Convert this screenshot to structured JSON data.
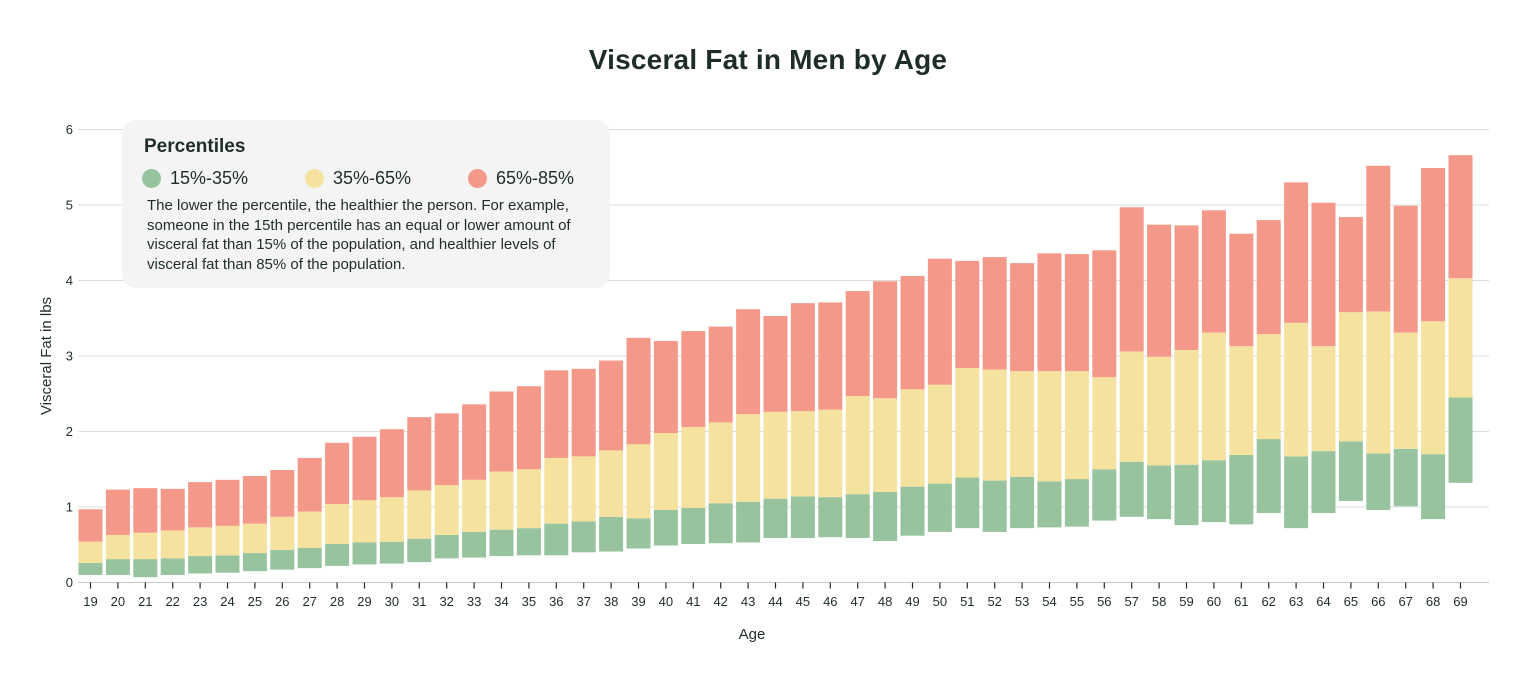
{
  "chart_data": {
    "type": "bar",
    "stacked": "floating",
    "title": "Visceral Fat in Men by Age",
    "xlabel": "Age",
    "ylabel": "Visceral Fat in lbs",
    "ylim": [
      0,
      6
    ],
    "yticks": [
      0,
      1,
      2,
      3,
      4,
      5,
      6
    ],
    "grid": true,
    "categories": [
      "19",
      "20",
      "21",
      "22",
      "23",
      "24",
      "25",
      "26",
      "27",
      "28",
      "29",
      "30",
      "31",
      "32",
      "33",
      "34",
      "35",
      "36",
      "37",
      "38",
      "39",
      "40",
      "41",
      "42",
      "43",
      "44",
      "45",
      "46",
      "47",
      "48",
      "49",
      "50",
      "51",
      "52",
      "53",
      "54",
      "55",
      "56",
      "57",
      "58",
      "59",
      "60",
      "61",
      "62",
      "63",
      "64",
      "65",
      "66",
      "67",
      "68",
      "69"
    ],
    "p15": [
      0.1,
      0.1,
      0.07,
      0.1,
      0.12,
      0.13,
      0.15,
      0.17,
      0.19,
      0.22,
      0.24,
      0.25,
      0.27,
      0.32,
      0.33,
      0.35,
      0.36,
      0.36,
      0.4,
      0.41,
      0.45,
      0.49,
      0.51,
      0.52,
      0.53,
      0.59,
      0.59,
      0.6,
      0.59,
      0.55,
      0.62,
      0.67,
      0.72,
      0.67,
      0.72,
      0.73,
      0.74,
      0.82,
      0.87,
      0.84,
      0.76,
      0.8,
      0.77,
      0.92,
      0.72,
      0.92,
      1.08,
      0.96,
      1.01,
      0.84,
      1.32
    ],
    "p35": [
      0.26,
      0.31,
      0.31,
      0.32,
      0.35,
      0.36,
      0.39,
      0.43,
      0.46,
      0.51,
      0.53,
      0.54,
      0.58,
      0.63,
      0.67,
      0.7,
      0.72,
      0.78,
      0.81,
      0.87,
      0.85,
      0.96,
      0.99,
      1.05,
      1.07,
      1.11,
      1.14,
      1.13,
      1.17,
      1.2,
      1.27,
      1.31,
      1.39,
      1.35,
      1.4,
      1.34,
      1.37,
      1.5,
      1.6,
      1.55,
      1.56,
      1.62,
      1.69,
      1.9,
      1.67,
      1.74,
      1.87,
      1.71,
      1.77,
      1.7,
      2.45
    ],
    "p65": [
      0.54,
      0.63,
      0.66,
      0.69,
      0.73,
      0.75,
      0.78,
      0.87,
      0.94,
      1.04,
      1.09,
      1.13,
      1.22,
      1.29,
      1.36,
      1.47,
      1.5,
      1.65,
      1.67,
      1.75,
      1.83,
      1.98,
      2.06,
      2.12,
      2.23,
      2.26,
      2.27,
      2.29,
      2.47,
      2.44,
      2.56,
      2.62,
      2.84,
      2.82,
      2.8,
      2.8,
      2.8,
      2.72,
      3.06,
      2.99,
      3.08,
      3.31,
      3.13,
      3.29,
      3.44,
      3.13,
      3.58,
      3.59,
      3.31,
      3.46,
      4.03
    ],
    "p85": [
      0.97,
      1.23,
      1.25,
      1.24,
      1.33,
      1.36,
      1.41,
      1.49,
      1.65,
      1.85,
      1.93,
      2.03,
      2.19,
      2.24,
      2.36,
      2.53,
      2.6,
      2.81,
      2.83,
      2.94,
      3.24,
      3.2,
      3.33,
      3.39,
      3.62,
      3.53,
      3.7,
      3.71,
      3.86,
      3.99,
      4.06,
      4.29,
      4.26,
      4.31,
      4.23,
      4.36,
      4.35,
      4.4,
      4.97,
      4.74,
      4.73,
      4.93,
      4.62,
      4.8,
      5.3,
      5.03,
      4.84,
      5.52,
      4.99,
      5.49,
      5.66
    ],
    "series": [
      {
        "name": "15%-35%",
        "color": "#97c49f"
      },
      {
        "name": "35%-65%",
        "color": "#f6e29f"
      },
      {
        "name": "65%-85%",
        "color": "#f4998a"
      }
    ]
  },
  "legend": {
    "heading": "Percentiles",
    "items": [
      "15%-35%",
      "35%-65%",
      "65%-85%"
    ],
    "note": "The lower the percentile, the healthier the person. For example, someone in the 15th percentile has an equal or lower amount of visceral fat than 15% of the population, and healthier levels of visceral fat than 85% of the population."
  },
  "colors": {
    "green": "#97c49f",
    "yellow": "#f6e29f",
    "red": "#f4998a",
    "grid": "#dcdcdc",
    "text": "#1f2d2a",
    "legend_bg": "#f4f4f4"
  }
}
